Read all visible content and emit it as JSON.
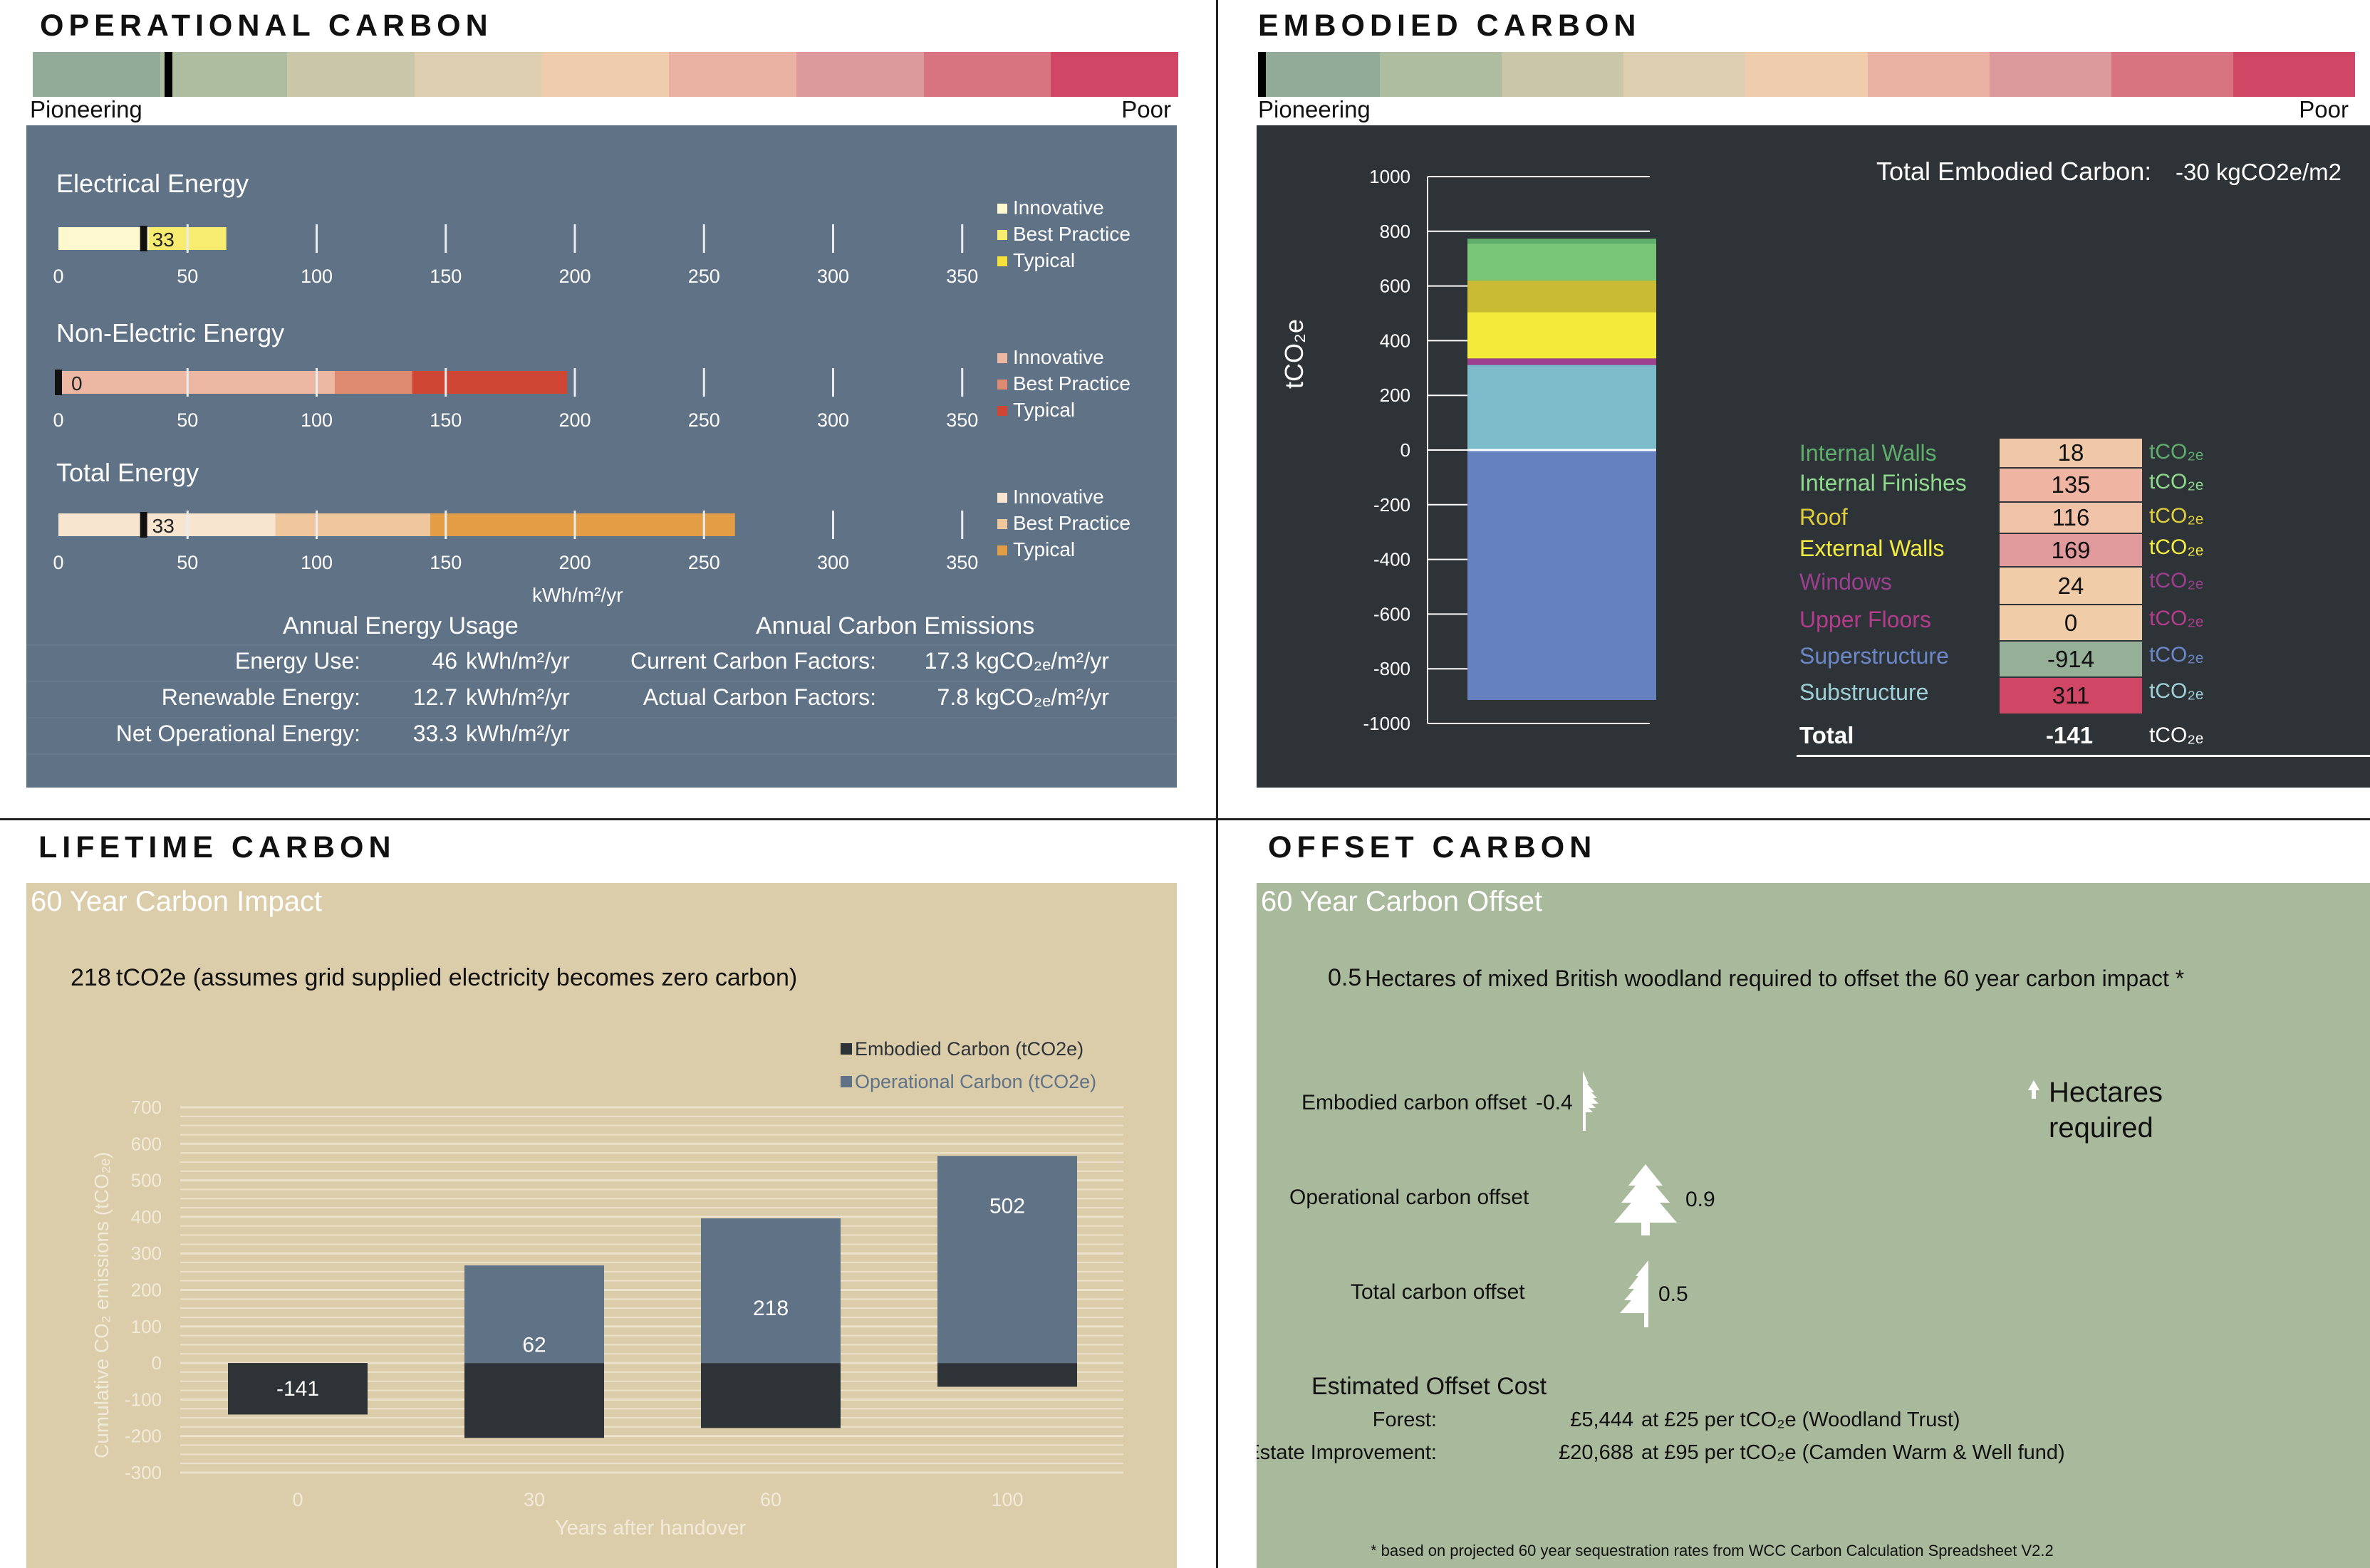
{
  "scale_colors": [
    "#92aa98",
    "#aebca0",
    "#c9c6a9",
    "#ddcfb0",
    "#f0ccaf",
    "#e9b2a3",
    "#dd9a9c",
    "#d8747f",
    "#cf4765"
  ],
  "operational": {
    "title": "OPERATIONAL CARBON",
    "scale_left": "Pioneering",
    "scale_right": "Poor",
    "marker_fraction": 0.115,
    "rows": [
      {
        "label": "Electrical Energy",
        "value_label": "33",
        "legend": [
          "Innovative",
          "Best Practice",
          "Typical"
        ]
      },
      {
        "label": "Non-Electric Energy",
        "value_label": "0",
        "legend": [
          "Innovative",
          "Best Practice",
          "Typical"
        ]
      },
      {
        "label": "Total Energy",
        "value_label": "33",
        "legend": [
          "Innovative",
          "Best Practice",
          "Typical"
        ]
      }
    ],
    "ticks": [
      "0",
      "50",
      "100",
      "150",
      "200",
      "250",
      "300",
      "350"
    ],
    "unit": "kWh/m²/yr",
    "usage_title": "Annual Energy Usage",
    "emissions_title": "Annual Carbon Emissions",
    "energy_use_label": "Energy Use:",
    "energy_use_value": "46",
    "energy_use_unit": "kWh/m²/yr",
    "renewable_label": "Renewable Energy:",
    "renewable_value": "12.7",
    "renewable_unit": "kWh/m²/yr",
    "net_label": "Net Operational Energy:",
    "net_value": "33.3",
    "net_unit": "kWh/m²/yr",
    "current_label": "Current Carbon Factors:",
    "current_value": "17.3",
    "current_unit": "kgCO₂ₑ/m²/yr",
    "actual_label": "Actual Carbon Factors:",
    "actual_value": "7.8",
    "actual_unit": "kgCO₂ₑ/m²/yr"
  },
  "embodied": {
    "title": "EMBODIED CARBON",
    "scale_left": "Pioneering",
    "scale_right": "Poor",
    "marker_fraction": 0.0,
    "total_label": "Total Embodied Carbon:",
    "total_value": "-30 kgCO2e/m2",
    "yaxis_label": "tCO₂e",
    "unit": "tCO₂ₑ",
    "items": [
      {
        "name": "Internal Walls",
        "value": "18",
        "color": "#5fae6c",
        "cell": "#efc9a7"
      },
      {
        "name": "Internal Finishes",
        "value": "135",
        "color": "#8fd98c",
        "cell": "#efb5a2"
      },
      {
        "name": "Roof",
        "value": "116",
        "color": "#e3cf3c",
        "cell": "#f0c3a9"
      },
      {
        "name": "External Walls",
        "value": "169",
        "color": "#f4ec40",
        "cell": "#e09a9c"
      },
      {
        "name": "Windows",
        "value": "24",
        "color": "#9b3f8e",
        "cell": "#f0cca8"
      },
      {
        "name": "Upper Floors",
        "value": "0",
        "color": "#b43c8c",
        "cell": "#f0cca8"
      },
      {
        "name": "Superstructure",
        "value": "-914",
        "color": "#6c88c8",
        "cell": "#96b098"
      },
      {
        "name": "Substructure",
        "value": "311",
        "color": "#9fd2d8",
        "cell": "#cf4765"
      }
    ],
    "total_row_label": "Total",
    "total_row_value": "-141"
  },
  "lifetime": {
    "title": "LIFETIME CARBON",
    "panel_title": "60 Year Carbon Impact",
    "impact_value": "218",
    "impact_text": "tCO2e (assumes grid supplied electricity becomes zero carbon)",
    "legend": [
      "Embodied Carbon (tCO2e)",
      "Operational Carbon (tCO2e)"
    ],
    "ylabel": "Cumulative CO₂ emissions (tCO₂ₑ)",
    "xlabel": "Years after handover"
  },
  "offset": {
    "title": "OFFSET CARBON",
    "panel_title": "60 Year Carbon Offset",
    "hectares_value": "0.5",
    "hectares_text": "Hectares of mixed British woodland required to offset the 60 year carbon impact *",
    "legend_line1": "Hectares",
    "legend_line2": "required",
    "rows": [
      {
        "label": "Embodied carbon offset",
        "value": "-0.4"
      },
      {
        "label": "Operational carbon offset",
        "value": "0.9"
      },
      {
        "label": "Total carbon offset",
        "value": "0.5"
      }
    ],
    "cost_title": "Estimated Offset Cost",
    "forest_label": "Forest:",
    "forest_value": "£5,444",
    "forest_text": "at £25 per tCO₂e (Woodland Trust)",
    "estate_label": "Estate Improvement:",
    "estate_value": "£20,688",
    "estate_text": "at £95 per tCO₂e (Camden Warm & Well fund)",
    "footnote": "* based on projected 60 year sequestration rates from WCC Carbon Calculation Spreadsheet V2.2"
  },
  "chart_data": [
    {
      "type": "bar",
      "title": "Electrical Energy",
      "xlabel": "kWh/m²/yr",
      "xlim": [
        0,
        350
      ],
      "series": [
        {
          "name": "Innovative",
          "values": [
            35
          ]
        },
        {
          "name": "Best Practice",
          "values": [
            65
          ]
        },
        {
          "name": "Typical",
          "values": [
            65
          ]
        }
      ],
      "marker_value": 33
    },
    {
      "type": "bar",
      "title": "Non-Electric Energy",
      "xlabel": "kWh/m²/yr",
      "xlim": [
        0,
        350
      ],
      "series": [
        {
          "name": "Innovative",
          "values": [
            107
          ]
        },
        {
          "name": "Best Practice",
          "values": [
            137
          ]
        },
        {
          "name": "Typical",
          "values": [
            197
          ]
        }
      ],
      "marker_value": 0
    },
    {
      "type": "bar",
      "title": "Total Energy",
      "xlabel": "kWh/m²/yr",
      "xlim": [
        0,
        350
      ],
      "series": [
        {
          "name": "Innovative",
          "values": [
            84
          ]
        },
        {
          "name": "Best Practice",
          "values": [
            144
          ]
        },
        {
          "name": "Typical",
          "values": [
            262
          ]
        }
      ],
      "marker_value": 33
    },
    {
      "type": "bar",
      "title": "Total Embodied Carbon",
      "ylabel": "tCO₂e",
      "ylim": [
        -1000,
        1000
      ],
      "yticks": [
        1000,
        800,
        600,
        400,
        200,
        0,
        -200,
        -400,
        -600,
        -800,
        -1000
      ],
      "series": [
        {
          "name": "Superstructure",
          "values": [
            -914
          ]
        },
        {
          "name": "Substructure",
          "values": [
            311
          ]
        },
        {
          "name": "Upper Floors",
          "values": [
            0
          ]
        },
        {
          "name": "Windows",
          "values": [
            24
          ]
        },
        {
          "name": "External Walls",
          "values": [
            169
          ]
        },
        {
          "name": "Roof",
          "values": [
            116
          ]
        },
        {
          "name": "Internal Finishes",
          "values": [
            135
          ]
        },
        {
          "name": "Internal Walls",
          "values": [
            18
          ]
        }
      ]
    },
    {
      "type": "bar",
      "title": "60 Year Carbon Impact",
      "xlabel": "Years after handover",
      "ylabel": "Cumulative CO₂ emissions (tCO₂ₑ)",
      "categories": [
        "0",
        "30",
        "60",
        "100"
      ],
      "ylim": [
        -300,
        700
      ],
      "yticks": [
        700,
        600,
        500,
        400,
        300,
        200,
        100,
        0,
        -100,
        -200,
        -300
      ],
      "series": [
        {
          "name": "Embodied Carbon (tCO2e)",
          "values": [
            -141,
            -205,
            -178,
            -65
          ]
        },
        {
          "name": "Operational Carbon (tCO2e)",
          "values": [
            0,
            267,
            396,
            567
          ]
        }
      ],
      "data_labels": [
        "-141",
        "62",
        "218",
        "502"
      ]
    }
  ]
}
